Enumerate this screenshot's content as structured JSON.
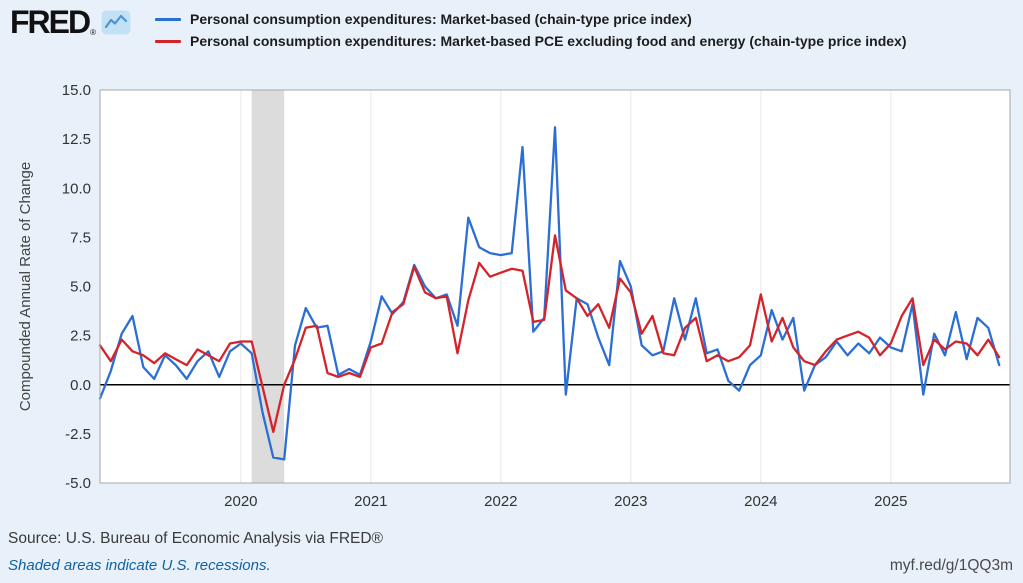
{
  "header": {
    "logo_text": "FRED",
    "logo_registered": "®",
    "legend": [
      {
        "label": "Personal consumption expenditures: Market-based (chain-type price index)",
        "color": "#2b6fd4"
      },
      {
        "label": "Personal consumption expenditures: Market-based PCE excluding food and energy (chain-type price index)",
        "color": "#d5232a"
      }
    ]
  },
  "footer": {
    "source": "Source: U.S. Bureau of Economic Analysis via FRED®",
    "recessions_note": "Shaded areas indicate U.S. recessions.",
    "short_url": "myf.red/g/1QQ3m"
  },
  "chart_data": {
    "type": "line",
    "title": "",
    "ylabel": "Compounded Annual Rate of Change",
    "ylim": [
      -5.0,
      15.0
    ],
    "ytick_labels": [
      "15.0",
      "12.5",
      "10.0",
      "7.5",
      "5.0",
      "2.5",
      "0.0",
      "-2.5",
      "-5.0"
    ],
    "xticks": [
      "2020",
      "2021",
      "2022",
      "2023",
      "2024",
      "2025"
    ],
    "zero_line": true,
    "grid_vertical": true,
    "legend_position": "top",
    "recession_bands": [
      {
        "start": "2020-02",
        "end": "2020-05"
      }
    ],
    "x": [
      "2018-12",
      "2019-01",
      "2019-02",
      "2019-03",
      "2019-04",
      "2019-05",
      "2019-06",
      "2019-07",
      "2019-08",
      "2019-09",
      "2019-10",
      "2019-11",
      "2019-12",
      "2020-01",
      "2020-02",
      "2020-03",
      "2020-04",
      "2020-05",
      "2020-06",
      "2020-07",
      "2020-08",
      "2020-09",
      "2020-10",
      "2020-11",
      "2020-12",
      "2021-01",
      "2021-02",
      "2021-03",
      "2021-04",
      "2021-05",
      "2021-06",
      "2021-07",
      "2021-08",
      "2021-09",
      "2021-10",
      "2021-11",
      "2021-12",
      "2022-01",
      "2022-02",
      "2022-03",
      "2022-04",
      "2022-05",
      "2022-06",
      "2022-07",
      "2022-08",
      "2022-09",
      "2022-10",
      "2022-11",
      "2022-12",
      "2023-01",
      "2023-02",
      "2023-03",
      "2023-04",
      "2023-05",
      "2023-06",
      "2023-07",
      "2023-08",
      "2023-09",
      "2023-10",
      "2023-11",
      "2023-12",
      "2024-01",
      "2024-02",
      "2024-03",
      "2024-04",
      "2024-05",
      "2024-06",
      "2024-07",
      "2024-08",
      "2024-09",
      "2024-10",
      "2024-11",
      "2024-12",
      "2025-01",
      "2025-02",
      "2025-03",
      "2025-04",
      "2025-05",
      "2025-06",
      "2025-07",
      "2025-08",
      "2025-09",
      "2025-10",
      "2025-11"
    ],
    "series": [
      {
        "name": "Personal consumption expenditures: Market-based (chain-type price index)",
        "color": "#2b6fd4",
        "values": [
          -0.7,
          0.7,
          2.6,
          3.5,
          0.9,
          0.3,
          1.5,
          1.0,
          0.3,
          1.2,
          1.7,
          0.4,
          1.7,
          2.1,
          1.6,
          -1.4,
          -3.7,
          -3.8,
          2.0,
          3.9,
          2.9,
          3.0,
          0.5,
          0.8,
          0.5,
          2.2,
          4.5,
          3.6,
          4.2,
          6.1,
          5.0,
          4.4,
          4.6,
          3.0,
          8.5,
          7.0,
          6.7,
          6.6,
          6.7,
          12.1,
          2.7,
          3.4,
          13.1,
          -0.5,
          4.4,
          4.1,
          2.4,
          1.0,
          6.3,
          5.0,
          2.0,
          1.5,
          1.7,
          4.4,
          2.3,
          4.4,
          1.6,
          1.8,
          0.2,
          -0.3,
          1.0,
          1.5,
          3.8,
          2.3,
          3.4,
          -0.3,
          1.0,
          1.4,
          2.2,
          1.5,
          2.1,
          1.6,
          2.4,
          1.9,
          1.7,
          4.1,
          -0.5,
          2.6,
          1.5,
          3.7,
          1.3,
          3.4,
          2.9,
          1.0
        ]
      },
      {
        "name": "Personal consumption expenditures: Market-based PCE excluding food and energy (chain-type price index)",
        "color": "#d5232a",
        "values": [
          2.0,
          1.2,
          2.3,
          1.7,
          1.5,
          1.1,
          1.6,
          1.3,
          1.0,
          1.8,
          1.5,
          1.2,
          2.1,
          2.2,
          2.2,
          -0.1,
          -2.4,
          0.0,
          1.3,
          2.9,
          3.0,
          0.6,
          0.4,
          0.6,
          0.4,
          1.9,
          2.1,
          3.7,
          4.1,
          6.0,
          4.7,
          4.4,
          4.5,
          1.6,
          4.3,
          6.2,
          5.5,
          5.7,
          5.9,
          5.8,
          3.2,
          3.3,
          7.6,
          4.8,
          4.4,
          3.5,
          4.1,
          2.9,
          5.4,
          4.7,
          2.6,
          3.5,
          1.6,
          1.5,
          2.9,
          3.4,
          1.2,
          1.5,
          1.2,
          1.4,
          2.0,
          4.6,
          2.2,
          3.4,
          1.9,
          1.2,
          1.0,
          1.7,
          2.3,
          2.5,
          2.7,
          2.4,
          1.5,
          2.1,
          3.5,
          4.4,
          1.0,
          2.3,
          1.8,
          2.2,
          2.1,
          1.5,
          2.3,
          1.4
        ]
      }
    ]
  }
}
